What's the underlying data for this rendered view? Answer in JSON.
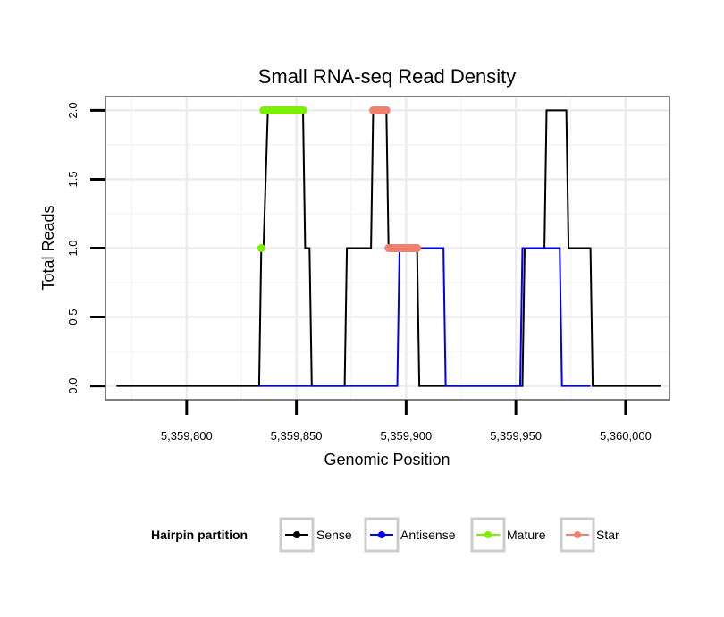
{
  "chart_data": {
    "type": "line",
    "title": "Small RNA-seq Read Density",
    "xlabel": "Genomic Position",
    "ylabel": "Total Reads",
    "xlim": [
      5359763,
      5360020
    ],
    "ylim": [
      -0.1,
      2.1
    ],
    "x_ticks": [
      5359800,
      5359850,
      5359900,
      5359950,
      5360000
    ],
    "x_tick_labels": [
      "5,359,800",
      "5,359,850",
      "5,359,900",
      "5,359,950",
      "5,360,000"
    ],
    "y_ticks": [
      0,
      0.5,
      1,
      1.5,
      2
    ],
    "y_tick_labels": [
      "0.0",
      "0.5",
      "1.0",
      "1.5",
      "2.0"
    ],
    "grid": true,
    "legend_title": "Hairpin partition",
    "legend_position": "bottom",
    "series": [
      {
        "name": "Sense",
        "color": "#000000",
        "style": "line",
        "x": [
          5359768,
          5359833,
          5359834,
          5359835,
          5359837,
          5359853,
          5359854,
          5359855,
          5359856,
          5359857,
          5359872,
          5359873,
          5359884,
          5359885,
          5359891,
          5359892,
          5359896,
          5359897,
          5359905,
          5359906,
          5359922,
          5359953,
          5359954,
          5359963,
          5359964,
          5359973,
          5359974,
          5359984,
          5359985,
          5360016
        ],
        "values": [
          0,
          0,
          1,
          1,
          2,
          2,
          1,
          1,
          1,
          0,
          0,
          1,
          1,
          2,
          2,
          1,
          1,
          1,
          1,
          0,
          0,
          0,
          1,
          1,
          2,
          2,
          1,
          1,
          0,
          0
        ]
      },
      {
        "name": "Antisense",
        "color": "#0000ee",
        "style": "line",
        "x": [
          5359833,
          5359857,
          5359872,
          5359896,
          5359897,
          5359917,
          5359918,
          5359952,
          5359953,
          5359970,
          5359971,
          5359984
        ],
        "values": [
          0,
          0,
          0,
          0,
          1,
          1,
          0,
          0,
          1,
          1,
          0,
          0
        ]
      },
      {
        "name": "Mature",
        "color": "#7cf000",
        "style": "segment",
        "segments": [
          {
            "x0": 5359834,
            "x1": 5359834,
            "y": 1
          },
          {
            "x0": 5359835,
            "x1": 5359853,
            "y": 2
          }
        ]
      },
      {
        "name": "Star",
        "color": "#f08070",
        "style": "segment",
        "segments": [
          {
            "x0": 5359885,
            "x1": 5359891,
            "y": 2
          },
          {
            "x0": 5359892,
            "x1": 5359905,
            "y": 1
          }
        ]
      }
    ]
  }
}
